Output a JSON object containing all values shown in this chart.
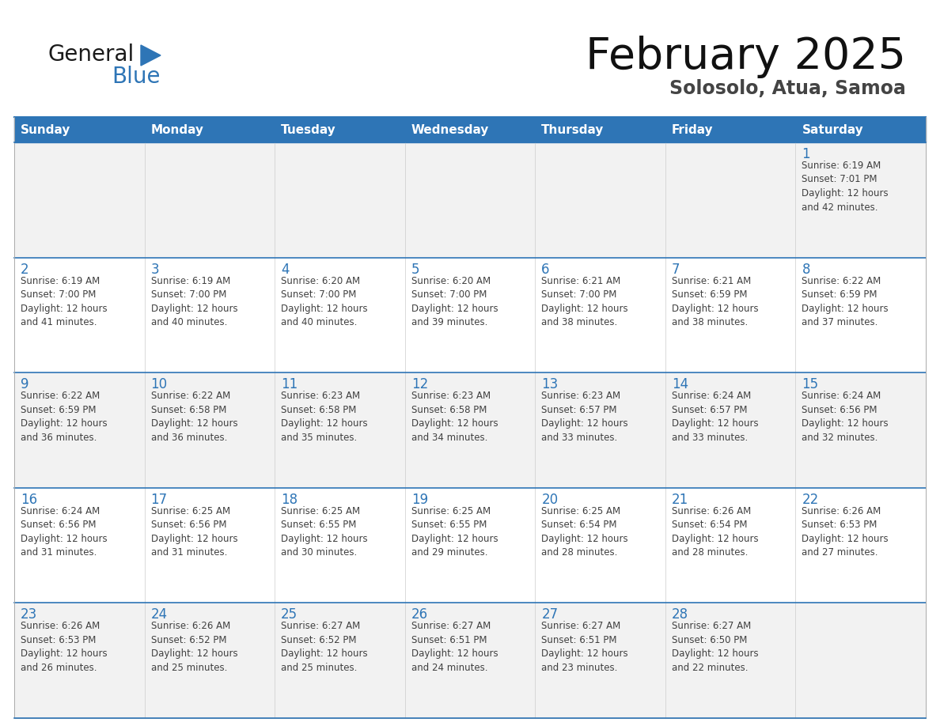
{
  "title": "February 2025",
  "subtitle": "Solosolo, Atua, Samoa",
  "header_color": "#2E75B6",
  "header_text_color": "#FFFFFF",
  "bg_color": "#FFFFFF",
  "cell_bg_alt": "#F2F2F2",
  "cell_bg_white": "#FFFFFF",
  "day_number_color": "#2E75B6",
  "text_color": "#404040",
  "line_color": "#2E75B6",
  "days_of_week": [
    "Sunday",
    "Monday",
    "Tuesday",
    "Wednesday",
    "Thursday",
    "Friday",
    "Saturday"
  ],
  "calendar_data": [
    [
      null,
      null,
      null,
      null,
      null,
      null,
      {
        "day": 1,
        "sunrise": "6:19 AM",
        "sunset": "7:01 PM",
        "daylight": "12 hours\nand 42 minutes."
      }
    ],
    [
      {
        "day": 2,
        "sunrise": "6:19 AM",
        "sunset": "7:00 PM",
        "daylight": "12 hours\nand 41 minutes."
      },
      {
        "day": 3,
        "sunrise": "6:19 AM",
        "sunset": "7:00 PM",
        "daylight": "12 hours\nand 40 minutes."
      },
      {
        "day": 4,
        "sunrise": "6:20 AM",
        "sunset": "7:00 PM",
        "daylight": "12 hours\nand 40 minutes."
      },
      {
        "day": 5,
        "sunrise": "6:20 AM",
        "sunset": "7:00 PM",
        "daylight": "12 hours\nand 39 minutes."
      },
      {
        "day": 6,
        "sunrise": "6:21 AM",
        "sunset": "7:00 PM",
        "daylight": "12 hours\nand 38 minutes."
      },
      {
        "day": 7,
        "sunrise": "6:21 AM",
        "sunset": "6:59 PM",
        "daylight": "12 hours\nand 38 minutes."
      },
      {
        "day": 8,
        "sunrise": "6:22 AM",
        "sunset": "6:59 PM",
        "daylight": "12 hours\nand 37 minutes."
      }
    ],
    [
      {
        "day": 9,
        "sunrise": "6:22 AM",
        "sunset": "6:59 PM",
        "daylight": "12 hours\nand 36 minutes."
      },
      {
        "day": 10,
        "sunrise": "6:22 AM",
        "sunset": "6:58 PM",
        "daylight": "12 hours\nand 36 minutes."
      },
      {
        "day": 11,
        "sunrise": "6:23 AM",
        "sunset": "6:58 PM",
        "daylight": "12 hours\nand 35 minutes."
      },
      {
        "day": 12,
        "sunrise": "6:23 AM",
        "sunset": "6:58 PM",
        "daylight": "12 hours\nand 34 minutes."
      },
      {
        "day": 13,
        "sunrise": "6:23 AM",
        "sunset": "6:57 PM",
        "daylight": "12 hours\nand 33 minutes."
      },
      {
        "day": 14,
        "sunrise": "6:24 AM",
        "sunset": "6:57 PM",
        "daylight": "12 hours\nand 33 minutes."
      },
      {
        "day": 15,
        "sunrise": "6:24 AM",
        "sunset": "6:56 PM",
        "daylight": "12 hours\nand 32 minutes."
      }
    ],
    [
      {
        "day": 16,
        "sunrise": "6:24 AM",
        "sunset": "6:56 PM",
        "daylight": "12 hours\nand 31 minutes."
      },
      {
        "day": 17,
        "sunrise": "6:25 AM",
        "sunset": "6:56 PM",
        "daylight": "12 hours\nand 31 minutes."
      },
      {
        "day": 18,
        "sunrise": "6:25 AM",
        "sunset": "6:55 PM",
        "daylight": "12 hours\nand 30 minutes."
      },
      {
        "day": 19,
        "sunrise": "6:25 AM",
        "sunset": "6:55 PM",
        "daylight": "12 hours\nand 29 minutes."
      },
      {
        "day": 20,
        "sunrise": "6:25 AM",
        "sunset": "6:54 PM",
        "daylight": "12 hours\nand 28 minutes."
      },
      {
        "day": 21,
        "sunrise": "6:26 AM",
        "sunset": "6:54 PM",
        "daylight": "12 hours\nand 28 minutes."
      },
      {
        "day": 22,
        "sunrise": "6:26 AM",
        "sunset": "6:53 PM",
        "daylight": "12 hours\nand 27 minutes."
      }
    ],
    [
      {
        "day": 23,
        "sunrise": "6:26 AM",
        "sunset": "6:53 PM",
        "daylight": "12 hours\nand 26 minutes."
      },
      {
        "day": 24,
        "sunrise": "6:26 AM",
        "sunset": "6:52 PM",
        "daylight": "12 hours\nand 25 minutes."
      },
      {
        "day": 25,
        "sunrise": "6:27 AM",
        "sunset": "6:52 PM",
        "daylight": "12 hours\nand 25 minutes."
      },
      {
        "day": 26,
        "sunrise": "6:27 AM",
        "sunset": "6:51 PM",
        "daylight": "12 hours\nand 24 minutes."
      },
      {
        "day": 27,
        "sunrise": "6:27 AM",
        "sunset": "6:51 PM",
        "daylight": "12 hours\nand 23 minutes."
      },
      {
        "day": 28,
        "sunrise": "6:27 AM",
        "sunset": "6:50 PM",
        "daylight": "12 hours\nand 22 minutes."
      },
      null
    ]
  ]
}
